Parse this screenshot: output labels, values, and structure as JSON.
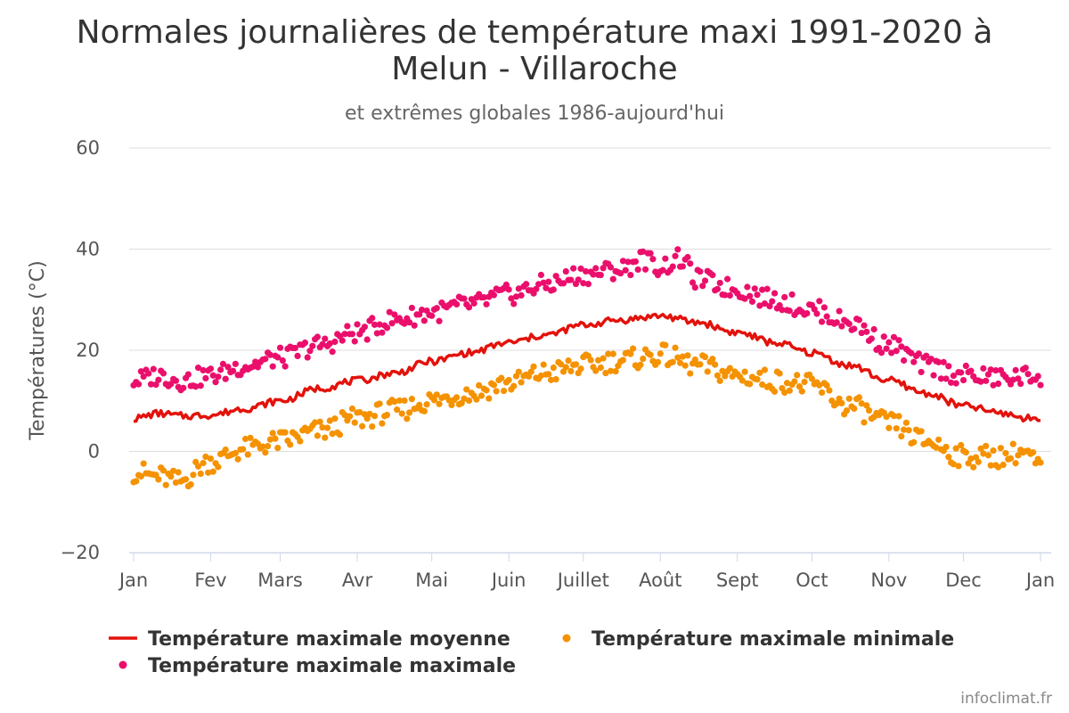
{
  "chart_data": {
    "type": "line",
    "title": "Normales journalières de température maxi 1991-2020 à Melun - Villaroche",
    "title_lines": [
      "Normales journalières de température maxi 1991-2020 à",
      "Melun - Villaroche"
    ],
    "subtitle": "et extrêmes globales 1986-aujourd'hui",
    "ylabel": "Températures (°C)",
    "xlabel": "",
    "ylim": [
      -20,
      60
    ],
    "y_ticks": [
      60,
      40,
      20,
      0,
      -20
    ],
    "y_tick_labels": [
      "60",
      "40",
      "20",
      "0",
      "−20"
    ],
    "x_ticks": [
      {
        "label": "Jan",
        "day": 0
      },
      {
        "label": "Fev",
        "day": 31
      },
      {
        "label": "Mars",
        "day": 59
      },
      {
        "label": "Avr",
        "day": 90
      },
      {
        "label": "Mai",
        "day": 120
      },
      {
        "label": "Juin",
        "day": 151
      },
      {
        "label": "Juillet",
        "day": 181
      },
      {
        "label": "Août",
        "day": 212
      },
      {
        "label": "Sept",
        "day": 243
      },
      {
        "label": "Oct",
        "day": 273
      },
      {
        "label": "Nov",
        "day": 304
      },
      {
        "label": "Dec",
        "day": 334
      },
      {
        "label": "Jan",
        "day": 365
      }
    ],
    "grid": true,
    "legend_position": "bottom",
    "series": [
      {
        "name": "Température maximale moyenne",
        "kind": "line",
        "color": "#e3120b",
        "anchors": [
          [
            0,
            6.5
          ],
          [
            10,
            7.5
          ],
          [
            20,
            7
          ],
          [
            31,
            7.2
          ],
          [
            45,
            8.5
          ],
          [
            59,
            10
          ],
          [
            75,
            12.5
          ],
          [
            90,
            14
          ],
          [
            105,
            15.5
          ],
          [
            120,
            17.8
          ],
          [
            135,
            19.5
          ],
          [
            151,
            21.5
          ],
          [
            166,
            23
          ],
          [
            181,
            25
          ],
          [
            196,
            26
          ],
          [
            212,
            26.8
          ],
          [
            227,
            25.5
          ],
          [
            243,
            23.5
          ],
          [
            258,
            21.5
          ],
          [
            273,
            19.5
          ],
          [
            288,
            17
          ],
          [
            304,
            14
          ],
          [
            319,
            11.5
          ],
          [
            334,
            9
          ],
          [
            350,
            7.5
          ],
          [
            360,
            6.5
          ],
          [
            365,
            6.8
          ]
        ]
      },
      {
        "name": "Température maximale minimale",
        "kind": "scatter",
        "color": "#f59200",
        "anchors": [
          [
            0,
            -4
          ],
          [
            10,
            -5
          ],
          [
            18,
            -6
          ],
          [
            31,
            -2
          ],
          [
            45,
            0.5
          ],
          [
            59,
            2
          ],
          [
            75,
            4
          ],
          [
            90,
            6.5
          ],
          [
            105,
            8
          ],
          [
            120,
            10
          ],
          [
            135,
            11.5
          ],
          [
            151,
            13.5
          ],
          [
            166,
            15.5
          ],
          [
            181,
            17
          ],
          [
            196,
            18
          ],
          [
            212,
            19
          ],
          [
            227,
            17
          ],
          [
            243,
            15
          ],
          [
            258,
            14
          ],
          [
            273,
            13
          ],
          [
            288,
            9
          ],
          [
            304,
            5.5
          ],
          [
            319,
            2
          ],
          [
            334,
            -1
          ],
          [
            350,
            -1
          ],
          [
            358,
            0
          ],
          [
            365,
            -3
          ]
        ]
      },
      {
        "name": "Température maximale maximale",
        "kind": "scatter",
        "color": "#eb0f6c",
        "anchors": [
          [
            0,
            14
          ],
          [
            10,
            15
          ],
          [
            20,
            14
          ],
          [
            31,
            15
          ],
          [
            45,
            17
          ],
          [
            59,
            18.5
          ],
          [
            75,
            21
          ],
          [
            90,
            23.5
          ],
          [
            105,
            26
          ],
          [
            120,
            27.5
          ],
          [
            135,
            29
          ],
          [
            151,
            31
          ],
          [
            166,
            33
          ],
          [
            181,
            35
          ],
          [
            196,
            36
          ],
          [
            205,
            38
          ],
          [
            212,
            36.5
          ],
          [
            220,
            38
          ],
          [
            227,
            34
          ],
          [
            243,
            32
          ],
          [
            258,
            30
          ],
          [
            273,
            28
          ],
          [
            288,
            25.5
          ],
          [
            304,
            21
          ],
          [
            319,
            17
          ],
          [
            334,
            15
          ],
          [
            350,
            14.5
          ],
          [
            365,
            15
          ]
        ]
      }
    ]
  },
  "credit": "infoclimat.fr"
}
